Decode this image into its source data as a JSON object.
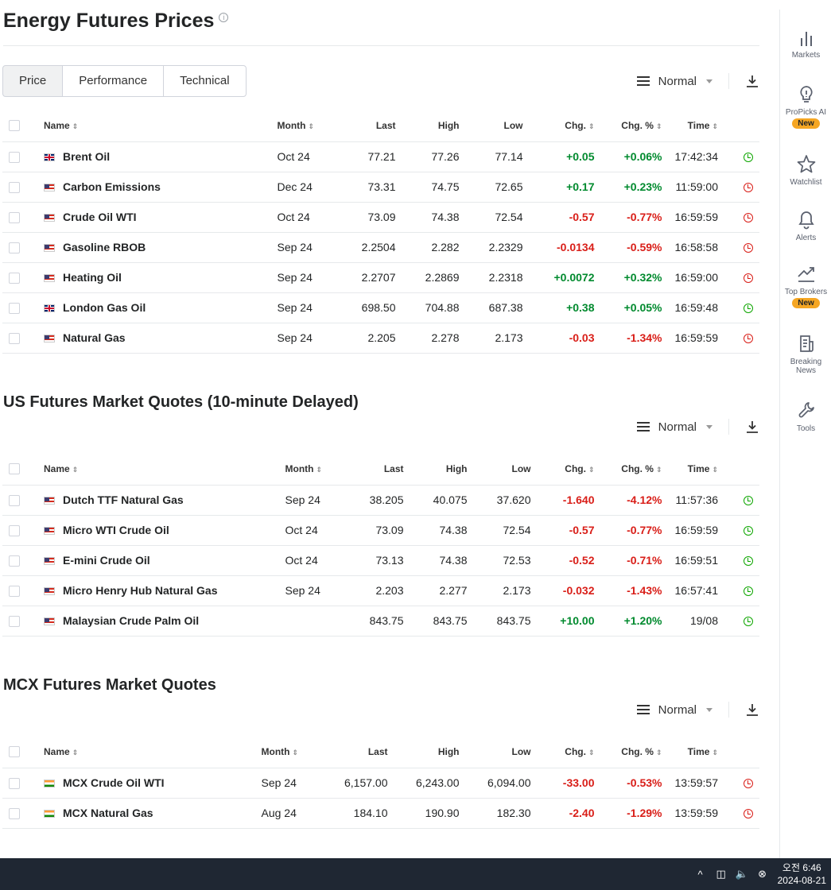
{
  "page": {
    "title": "Energy Futures Prices",
    "info": "i"
  },
  "tabs": [
    "Price",
    "Performance",
    "Technical"
  ],
  "view": {
    "label": "Normal"
  },
  "headers": {
    "name": "Name",
    "month": "Month",
    "last": "Last",
    "high": "High",
    "low": "Low",
    "chg": "Chg.",
    "chg_pct": "Chg. %",
    "time": "Time"
  },
  "sections": [
    {
      "title": "",
      "rows": [
        {
          "flag": "uk",
          "name": "Brent Oil",
          "month": "Oct 24",
          "last": "77.21",
          "high": "77.26",
          "low": "77.14",
          "chg": "+0.05",
          "chg_pct": "+0.06%",
          "time": "17:42:34",
          "status": "green"
        },
        {
          "flag": "us",
          "name": "Carbon Emissions",
          "month": "Dec 24",
          "last": "73.31",
          "high": "74.75",
          "low": "72.65",
          "chg": "+0.17",
          "chg_pct": "+0.23%",
          "time": "11:59:00",
          "status": "red"
        },
        {
          "flag": "us",
          "name": "Crude Oil WTI",
          "month": "Oct 24",
          "last": "73.09",
          "high": "74.38",
          "low": "72.54",
          "chg": "-0.57",
          "chg_pct": "-0.77%",
          "time": "16:59:59",
          "status": "red"
        },
        {
          "flag": "us",
          "name": "Gasoline RBOB",
          "month": "Sep 24",
          "last": "2.2504",
          "high": "2.282",
          "low": "2.2329",
          "chg": "-0.0134",
          "chg_pct": "-0.59%",
          "time": "16:58:58",
          "status": "red"
        },
        {
          "flag": "us",
          "name": "Heating Oil",
          "month": "Sep 24",
          "last": "2.2707",
          "high": "2.2869",
          "low": "2.2318",
          "chg": "+0.0072",
          "chg_pct": "+0.32%",
          "time": "16:59:00",
          "status": "red"
        },
        {
          "flag": "uk",
          "name": "London Gas Oil",
          "month": "Sep 24",
          "last": "698.50",
          "high": "704.88",
          "low": "687.38",
          "chg": "+0.38",
          "chg_pct": "+0.05%",
          "time": "16:59:48",
          "status": "green"
        },
        {
          "flag": "us",
          "name": "Natural Gas",
          "month": "Sep 24",
          "last": "2.205",
          "high": "2.278",
          "low": "2.173",
          "chg": "-0.03",
          "chg_pct": "-1.34%",
          "time": "16:59:59",
          "status": "red"
        }
      ]
    },
    {
      "title": "US Futures Market Quotes (10-minute Delayed)",
      "rows": [
        {
          "flag": "us",
          "name": "Dutch TTF Natural Gas",
          "month": "Sep 24",
          "last": "38.205",
          "high": "40.075",
          "low": "37.620",
          "chg": "-1.640",
          "chg_pct": "-4.12%",
          "time": "11:57:36",
          "status": "green"
        },
        {
          "flag": "us",
          "name": "Micro WTI Crude Oil",
          "month": "Oct 24",
          "last": "73.09",
          "high": "74.38",
          "low": "72.54",
          "chg": "-0.57",
          "chg_pct": "-0.77%",
          "time": "16:59:59",
          "status": "green"
        },
        {
          "flag": "us",
          "name": "E-mini Crude Oil",
          "month": "Oct 24",
          "last": "73.13",
          "high": "74.38",
          "low": "72.53",
          "chg": "-0.52",
          "chg_pct": "-0.71%",
          "time": "16:59:51",
          "status": "green"
        },
        {
          "flag": "us",
          "name": "Micro Henry Hub Natural Gas",
          "month": "Sep 24",
          "last": "2.203",
          "high": "2.277",
          "low": "2.173",
          "chg": "-0.032",
          "chg_pct": "-1.43%",
          "time": "16:57:41",
          "status": "green"
        },
        {
          "flag": "us",
          "name": "Malaysian Crude Palm Oil",
          "month": "",
          "last": "843.75",
          "high": "843.75",
          "low": "843.75",
          "chg": "+10.00",
          "chg_pct": "+1.20%",
          "time": "19/08",
          "status": "green"
        }
      ]
    },
    {
      "title": "MCX Futures Market Quotes",
      "rows": [
        {
          "flag": "in",
          "name": "MCX Crude Oil WTI",
          "month": "Sep 24",
          "last": "6,157.00",
          "high": "6,243.00",
          "low": "6,094.00",
          "chg": "-33.00",
          "chg_pct": "-0.53%",
          "time": "13:59:57",
          "status": "red"
        },
        {
          "flag": "in",
          "name": "MCX Natural Gas",
          "month": "Aug 24",
          "last": "184.10",
          "high": "190.90",
          "low": "182.30",
          "chg": "-2.40",
          "chg_pct": "-1.29%",
          "time": "13:59:59",
          "status": "red"
        }
      ]
    }
  ],
  "sidebar": [
    {
      "label": "Markets",
      "icon": "bar-chart-icon",
      "badge": ""
    },
    {
      "label": "ProPicks AI",
      "icon": "lightbulb-icon",
      "badge": "New"
    },
    {
      "label": "Watchlist",
      "icon": "star-icon",
      "badge": ""
    },
    {
      "label": "Alerts",
      "icon": "bell-icon",
      "badge": ""
    },
    {
      "label": "Top Brokers",
      "icon": "trend-chart-icon",
      "badge": "New"
    },
    {
      "label": "Breaking News",
      "icon": "news-icon",
      "badge": ""
    },
    {
      "label": "Tools",
      "icon": "wrench-icon",
      "badge": ""
    }
  ],
  "taskbar": {
    "time": "오전 6:46",
    "date": "2024-08-21"
  },
  "colors": {
    "positive": "#008a2e",
    "negative": "#d91e18",
    "badge": "#f5a623",
    "taskbar": "#1f2733"
  }
}
